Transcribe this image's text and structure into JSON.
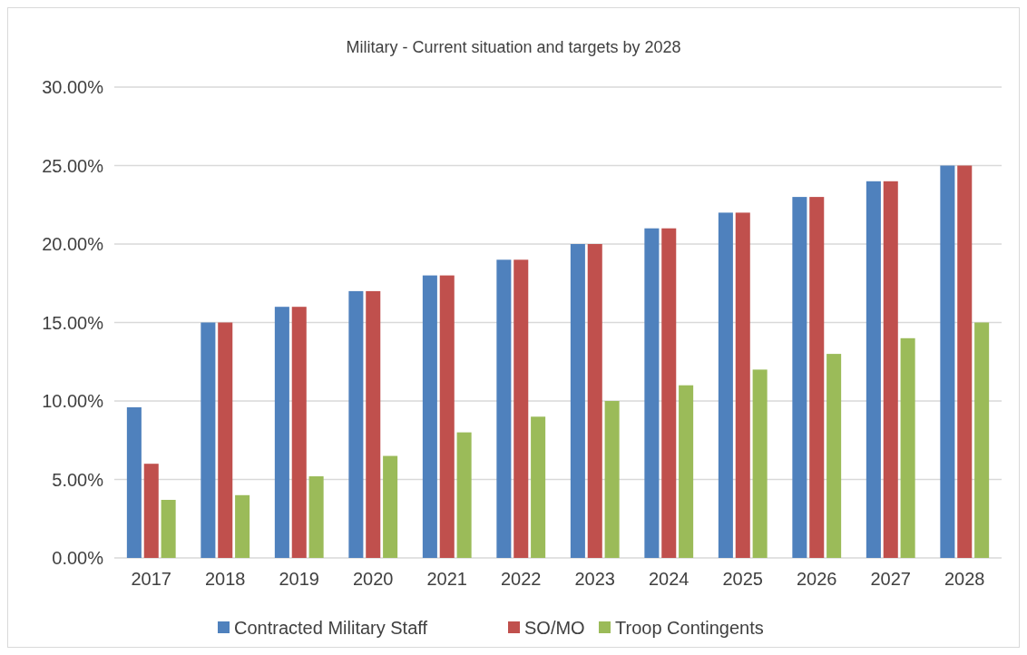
{
  "chart_data": {
    "type": "bar",
    "title": "Military - Current situation and targets by 2028",
    "categories": [
      "2017",
      "2018",
      "2019",
      "2020",
      "2021",
      "2022",
      "2023",
      "2024",
      "2025",
      "2026",
      "2027",
      "2028"
    ],
    "series": [
      {
        "name": "Contracted Military Staff",
        "color": "#4f81bd",
        "values": [
          9.6,
          15,
          16,
          17,
          18,
          19,
          20,
          21,
          22,
          23,
          24,
          25
        ]
      },
      {
        "name": "SO/MO",
        "color": "#c0504d",
        "values": [
          6,
          15,
          16,
          17,
          18,
          19,
          20,
          21,
          22,
          23,
          24,
          25
        ]
      },
      {
        "name": "Troop Contingents",
        "color": "#9bbb59",
        "values": [
          3.7,
          4,
          5.2,
          6.5,
          8,
          9,
          10,
          11,
          12,
          13,
          14,
          15
        ]
      }
    ],
    "ylim": [
      0,
      30
    ],
    "yticks": [
      {
        "value": 0,
        "label": "0.00%"
      },
      {
        "value": 5,
        "label": "5.00%"
      },
      {
        "value": 10,
        "label": "10.00%"
      },
      {
        "value": 15,
        "label": "15.00%"
      },
      {
        "value": 20,
        "label": "20.00%"
      },
      {
        "value": 25,
        "label": "25.00%"
      },
      {
        "value": 30,
        "label": "30.00%"
      }
    ],
    "grid": "y",
    "legend": "bottom"
  }
}
